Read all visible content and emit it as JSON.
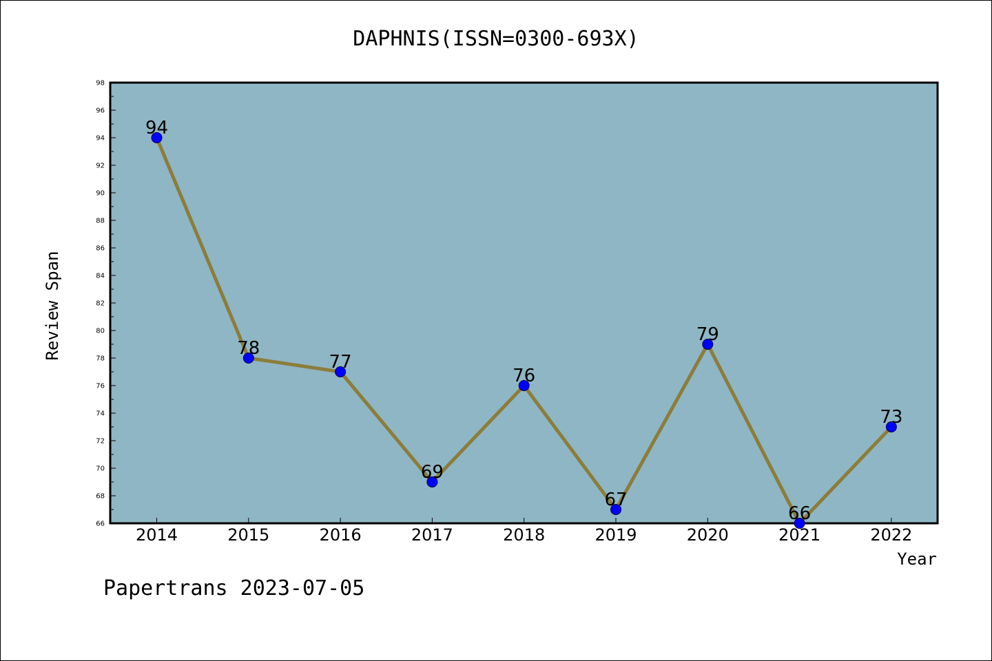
{
  "chart_data": {
    "type": "line",
    "title": "DAPHNIS(ISSN=0300-693X)",
    "xlabel": "Year",
    "ylabel": "Review Span",
    "categories": [
      "2014",
      "2015",
      "2016",
      "2017",
      "2018",
      "2019",
      "2020",
      "2021",
      "2022"
    ],
    "values": [
      94,
      78,
      77,
      69,
      76,
      67,
      79,
      66,
      73
    ],
    "ylim": [
      66,
      98
    ],
    "yticks": [
      66,
      68,
      70,
      72,
      74,
      76,
      78,
      80,
      82,
      84,
      86,
      88,
      90,
      92,
      94,
      96,
      98
    ],
    "grid": false,
    "colors": {
      "plot_background": "#8fb6c4",
      "line": "#8b7d3a",
      "marker": "#0000ff"
    }
  },
  "footer": "Papertrans 2023-07-05"
}
